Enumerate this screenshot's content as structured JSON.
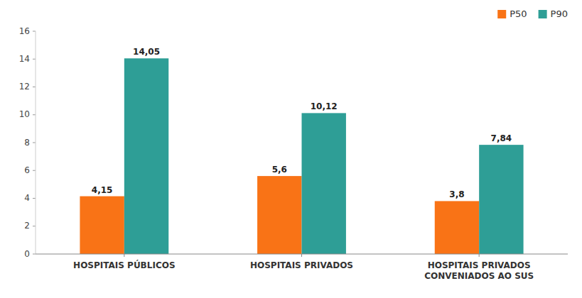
{
  "chart_data": {
    "type": "bar",
    "categories": [
      "HOSPITAIS PÚBLICOS",
      "HOSPITAIS PRIVADOS",
      "HOSPITAIS PRIVADOS\nCONVENIADOS AO SUS"
    ],
    "series": [
      {
        "name": "P50",
        "color": "#F97316",
        "values": [
          4.15,
          5.6,
          3.8
        ],
        "value_labels": [
          "4,15",
          "5,6",
          "3,8"
        ]
      },
      {
        "name": "P90",
        "color": "#2E9E96",
        "values": [
          14.05,
          10.12,
          7.84
        ],
        "value_labels": [
          "14,05",
          "10,12",
          "7,84"
        ]
      }
    ],
    "ylim": [
      0,
      16
    ],
    "yticks": [
      0,
      2,
      4,
      6,
      8,
      10,
      12,
      14,
      16
    ],
    "grid": false,
    "legend": "upper right",
    "data_labels": true
  }
}
